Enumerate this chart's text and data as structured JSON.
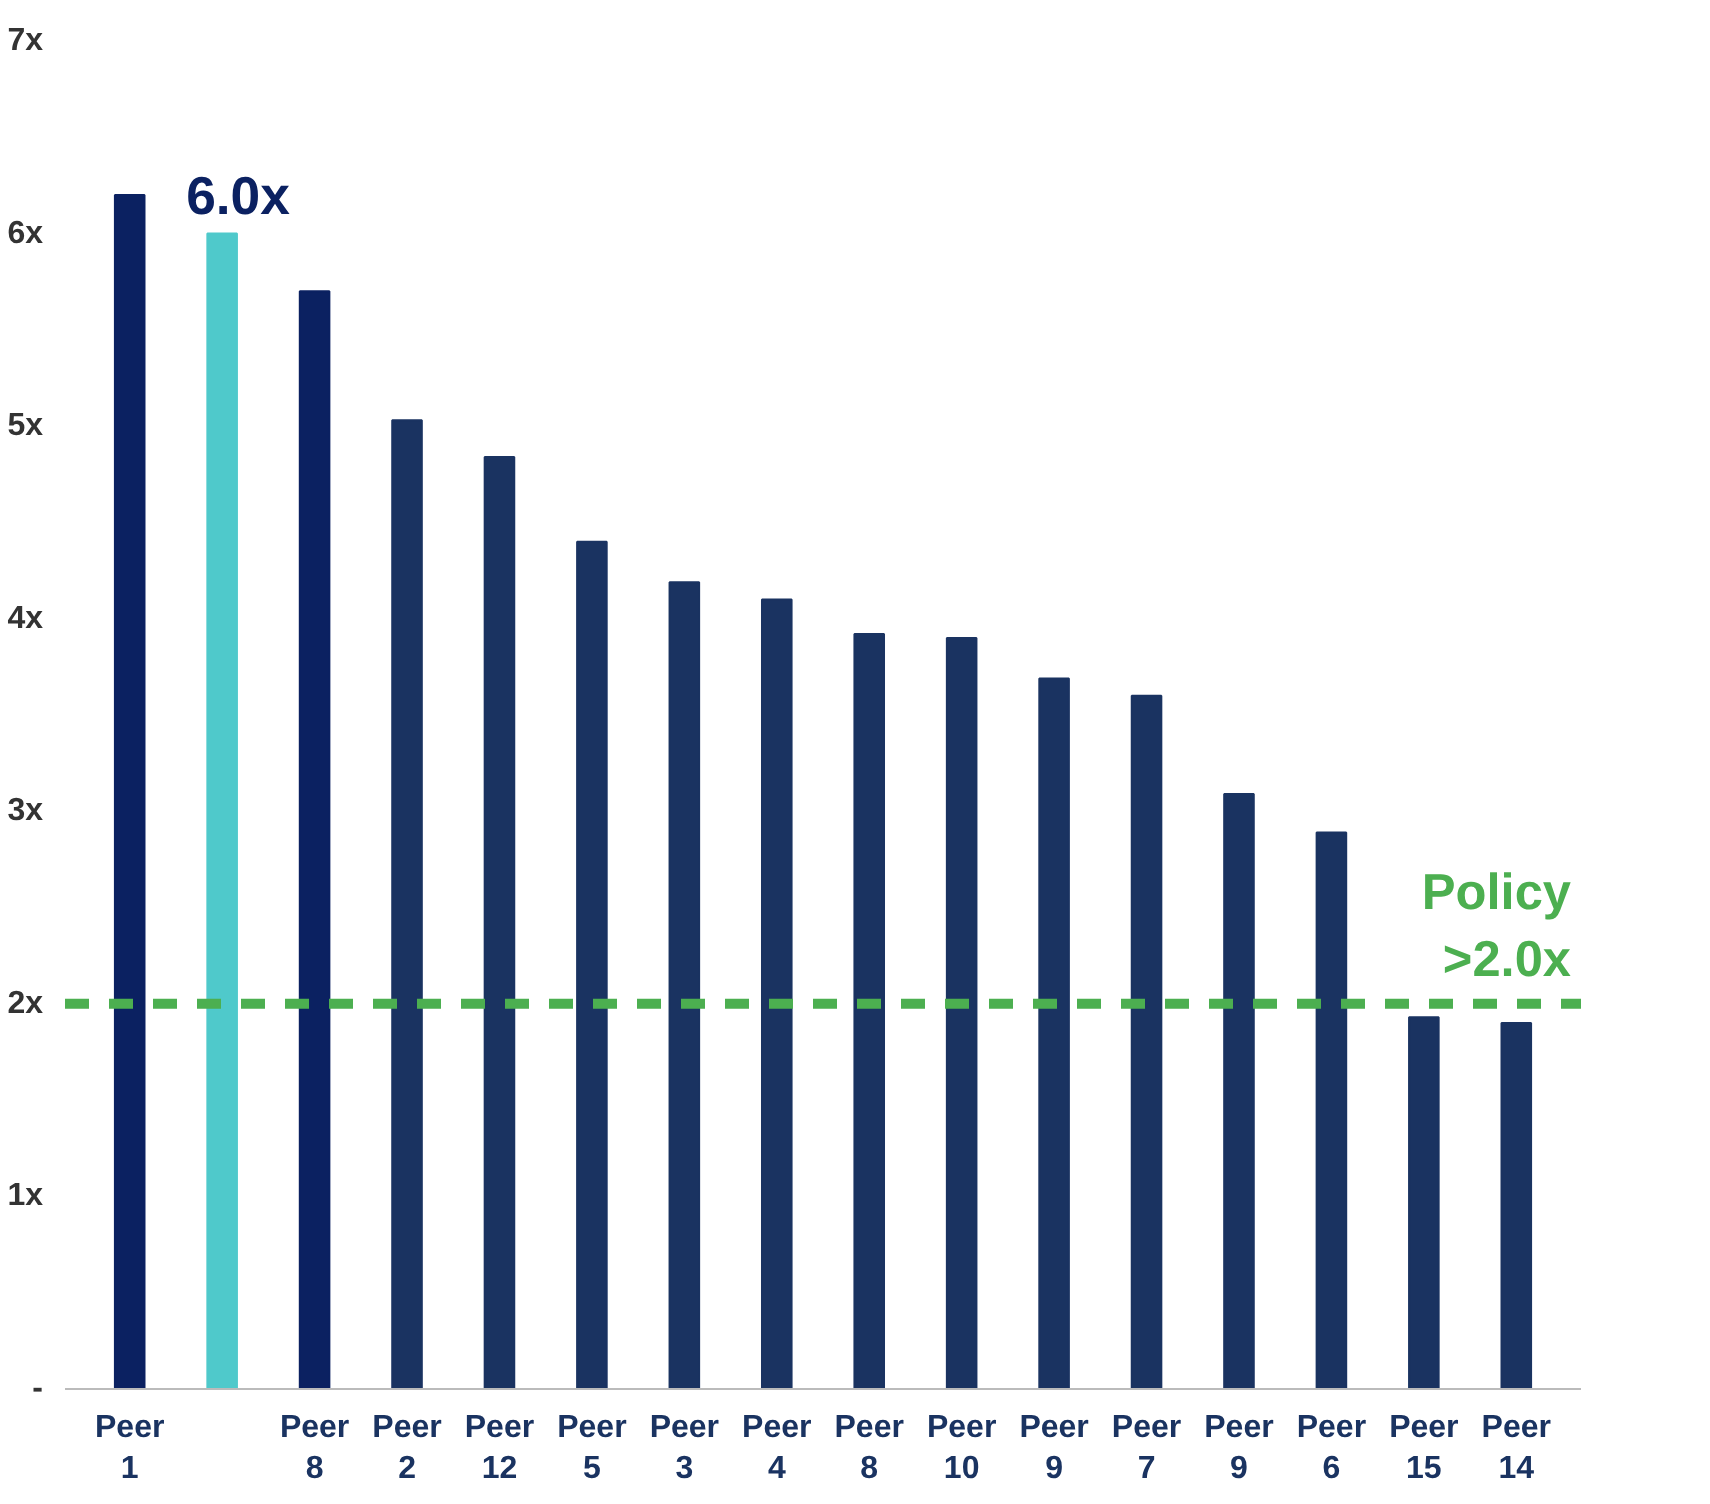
{
  "chart_data": {
    "type": "bar",
    "categories": [
      "Peer\n1",
      null,
      "Peer\n8",
      "Peer\n2",
      "Peer\n12",
      "Peer\n5",
      "Peer\n3",
      "Peer\n4",
      "Peer\n8",
      "Peer\n10",
      "Peer\n9",
      "Peer\n7",
      "Peer\n9",
      "Peer\n6",
      "Peer\n15",
      "Peer\n14"
    ],
    "values": [
      6.2,
      6.0,
      5.7,
      5.03,
      4.84,
      4.4,
      4.19,
      4.1,
      3.92,
      3.9,
      3.69,
      3.6,
      3.09,
      2.89,
      1.93,
      1.9
    ],
    "colors": [
      "#0b2161",
      "#4fc9cb",
      "#0b2161",
      "#1a3361",
      "#1a3361",
      "#1a3361",
      "#1a3361",
      "#1a3361",
      "#1a3361",
      "#1a3361",
      "#1a3361",
      "#1a3361",
      "#1a3361",
      "#1a3361",
      "#1a3361",
      "#1a3361"
    ],
    "value_labels": [
      null,
      "6.0x",
      null,
      null,
      null,
      null,
      null,
      null,
      null,
      null,
      null,
      null,
      null,
      null,
      null,
      null
    ],
    "ylim": [
      0,
      7
    ],
    "yticks": [
      {
        "value": 0,
        "label": "-"
      },
      {
        "value": 1,
        "label": "1x"
      },
      {
        "value": 2,
        "label": "2x"
      },
      {
        "value": 3,
        "label": "3x"
      },
      {
        "value": 4,
        "label": "4x"
      },
      {
        "value": 5,
        "label": "5x"
      },
      {
        "value": 6,
        "label": "6x"
      },
      {
        "value": 7,
        "label": "7x"
      }
    ],
    "ref_lines": [
      {
        "axis": "y",
        "value": 2,
        "label": "Policy\n>2.0x",
        "color": "#4caf50",
        "line_style": "dashed"
      }
    ],
    "grid": false
  }
}
